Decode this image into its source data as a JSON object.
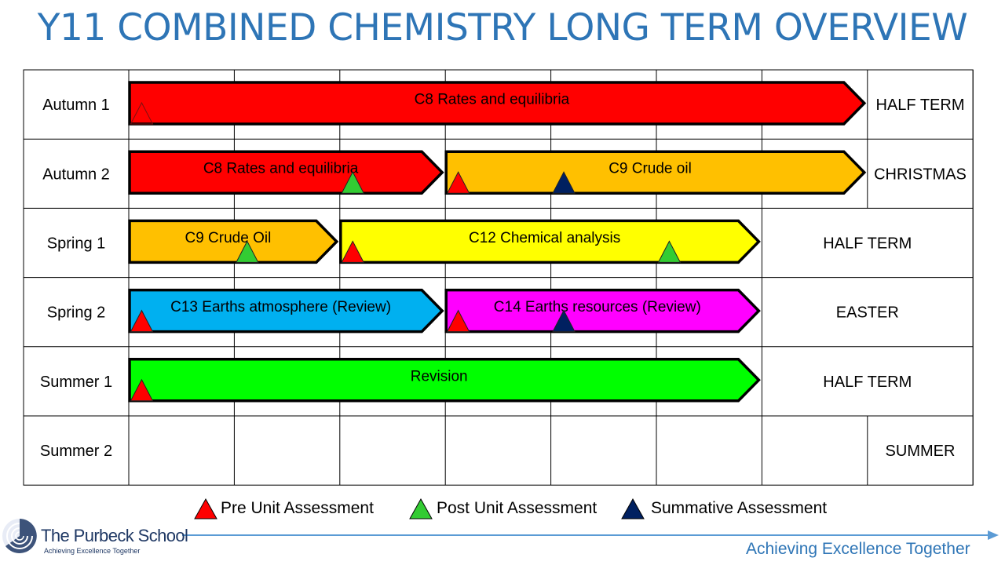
{
  "title": "Y11 COMBINED CHEMISTRY LONG TERM OVERVIEW",
  "rows": [
    "Autumn 1",
    "Autumn 2",
    "Spring 1",
    "Spring 2",
    "Summer 1",
    "Summer 2"
  ],
  "holidays": [
    "HALF TERM",
    "CHRISTMAS",
    "HALF TERM",
    "EASTER",
    "HALF TERM",
    "SUMMER"
  ],
  "units": [
    {
      "row": 0,
      "start_week": 0,
      "end_week": 7,
      "label": "C8 Rates and equilibria",
      "color": "#ff0000"
    },
    {
      "row": 1,
      "start_week": 0,
      "end_week": 3,
      "label": "C8 Rates and equilibria",
      "color": "#ff0000"
    },
    {
      "row": 1,
      "start_week": 3,
      "end_week": 7,
      "label": "C9 Crude oil",
      "color": "#ffc000"
    },
    {
      "row": 2,
      "start_week": 0,
      "end_week": 2,
      "label": "C9 Crude Oil",
      "color": "#ffc000"
    },
    {
      "row": 2,
      "start_week": 2,
      "end_week": 6,
      "label": "C12 Chemical analysis",
      "color": "#ffff00"
    },
    {
      "row": 3,
      "start_week": 0,
      "end_week": 3,
      "label": "C13 Earths atmosphere (Review)",
      "color": "#00b0f0"
    },
    {
      "row": 3,
      "start_week": 3,
      "end_week": 6,
      "label": "C14 Earths resources (Review)",
      "color": "#ff00ff"
    },
    {
      "row": 4,
      "start_week": 0,
      "end_week": 6,
      "label": "Revision",
      "color": "#00ff00"
    }
  ],
  "assessments": [
    {
      "row": 0,
      "week": 0.1,
      "type": "pre",
      "outline_only": true
    },
    {
      "row": 1,
      "week": 2.1,
      "type": "post"
    },
    {
      "row": 1,
      "week": 3.1,
      "type": "pre"
    },
    {
      "row": 1,
      "week": 4.1,
      "type": "summative"
    },
    {
      "row": 2,
      "week": 1.1,
      "type": "post"
    },
    {
      "row": 2,
      "week": 2.1,
      "type": "pre"
    },
    {
      "row": 2,
      "week": 5.1,
      "type": "post"
    },
    {
      "row": 3,
      "week": 0.1,
      "type": "pre"
    },
    {
      "row": 3,
      "week": 3.1,
      "type": "pre"
    },
    {
      "row": 3,
      "week": 4.1,
      "type": "summative"
    },
    {
      "row": 4,
      "week": 0.1,
      "type": "pre"
    }
  ],
  "legend": {
    "pre": "Pre Unit Assessment",
    "post": "Post Unit Assessment",
    "summative": "Summative Assessment"
  },
  "colors": {
    "pre": "#ff0000",
    "post": "#33cc33",
    "summative": "#002060",
    "title": "#2e75b6"
  },
  "footer": {
    "school": "The Purbeck School",
    "school_tagline": "Achieving Excellence Together",
    "tagline": "Achieving Excellence Together"
  }
}
